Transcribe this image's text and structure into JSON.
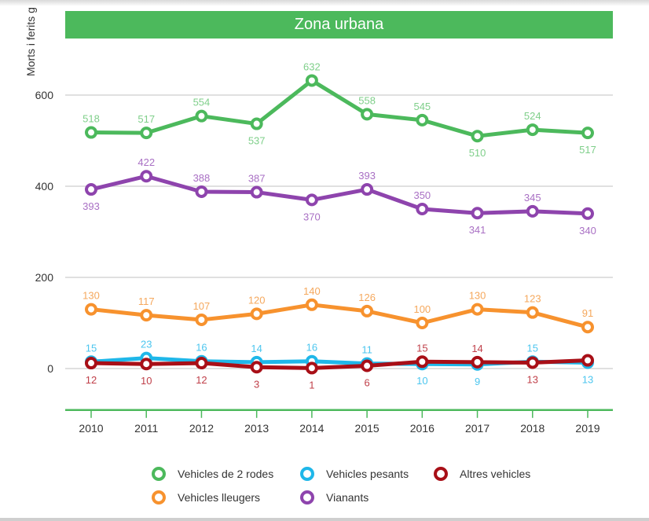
{
  "chart_data": {
    "type": "line",
    "title": "Zona urbana",
    "xlabel": "",
    "ylabel": "Morts i ferits g",
    "x": [
      "2010",
      "2011",
      "2012",
      "2013",
      "2014",
      "2015",
      "2016",
      "2017",
      "2018",
      "2019"
    ],
    "yticks": [
      "0",
      "200",
      "400",
      "600"
    ],
    "ylim": [
      -91,
      727
    ],
    "grid": true,
    "legend_position": "bottom",
    "series": [
      {
        "name": "Vehicles de 2 rodes",
        "color": "#4cb95c",
        "label_color": "#7fcf8a",
        "values": [
          518,
          517,
          554,
          537,
          632,
          558,
          545,
          510,
          524,
          517
        ],
        "labels": [
          "518",
          "517",
          "554",
          "537",
          "632",
          "558",
          "545",
          "510",
          "524",
          "517"
        ],
        "label_pos": [
          "above",
          "above",
          "above",
          "below",
          "above",
          "above",
          "above",
          "below",
          "above",
          "below"
        ]
      },
      {
        "name": "Vianants",
        "color": "#8e44ad",
        "label_color": "#a970c4",
        "values": [
          393,
          422,
          388,
          387,
          370,
          393,
          350,
          341,
          345,
          340
        ],
        "labels": [
          "393",
          "422",
          "388",
          "387",
          "370",
          "393",
          "350",
          "341",
          "345",
          "340"
        ],
        "label_pos": [
          "below",
          "above",
          "above",
          "above",
          "below",
          "above",
          "above",
          "below",
          "above",
          "below"
        ]
      },
      {
        "name": "Vehicles lleugers",
        "color": "#f7922e",
        "label_color": "#f5a85d",
        "values": [
          130,
          117,
          107,
          120,
          140,
          126,
          100,
          130,
          123,
          91
        ],
        "labels": [
          "130",
          "117",
          "107",
          "120",
          "140",
          "126",
          "100",
          "130",
          "123",
          "91"
        ],
        "label_pos": [
          "above",
          "above",
          "above",
          "above",
          "above",
          "above",
          "above",
          "above",
          "above",
          "above"
        ]
      },
      {
        "name": "Vehicles pesants",
        "color": "#1fb7e9",
        "label_color": "#4cc6ef",
        "values": [
          15,
          23,
          16,
          14,
          16,
          11,
          10,
          9,
          15,
          13
        ],
        "labels": [
          "15",
          "23",
          "16",
          "14",
          "16",
          "11",
          "10",
          "9",
          "15",
          "13"
        ],
        "label_pos": [
          "above",
          "above",
          "above",
          "above",
          "above",
          "above",
          "below",
          "below",
          "above",
          "below"
        ]
      },
      {
        "name": "Altres vehicles",
        "color": "#a80f17",
        "label_color": "#c0404a",
        "values": [
          12,
          10,
          12,
          3,
          1,
          6,
          15,
          14,
          13,
          18
        ],
        "labels": [
          "12",
          "10",
          "12",
          "3",
          "1",
          "6",
          "15",
          "14",
          "13",
          ""
        ],
        "label_pos": [
          "below",
          "below",
          "below",
          "below",
          "below",
          "below",
          "above",
          "above",
          "below",
          "none"
        ]
      }
    ],
    "legend": [
      {
        "name": "Vehicles de 2 rodes",
        "color": "#4cb95c"
      },
      {
        "name": "Vehicles pesants",
        "color": "#1fb7e9"
      },
      {
        "name": "Altres vehicles",
        "color": "#a80f17"
      },
      {
        "name": "Vehicles lleugers",
        "color": "#f7922e"
      },
      {
        "name": "Vianants",
        "color": "#8e44ad"
      }
    ],
    "axis_color": "#4cb95c"
  }
}
